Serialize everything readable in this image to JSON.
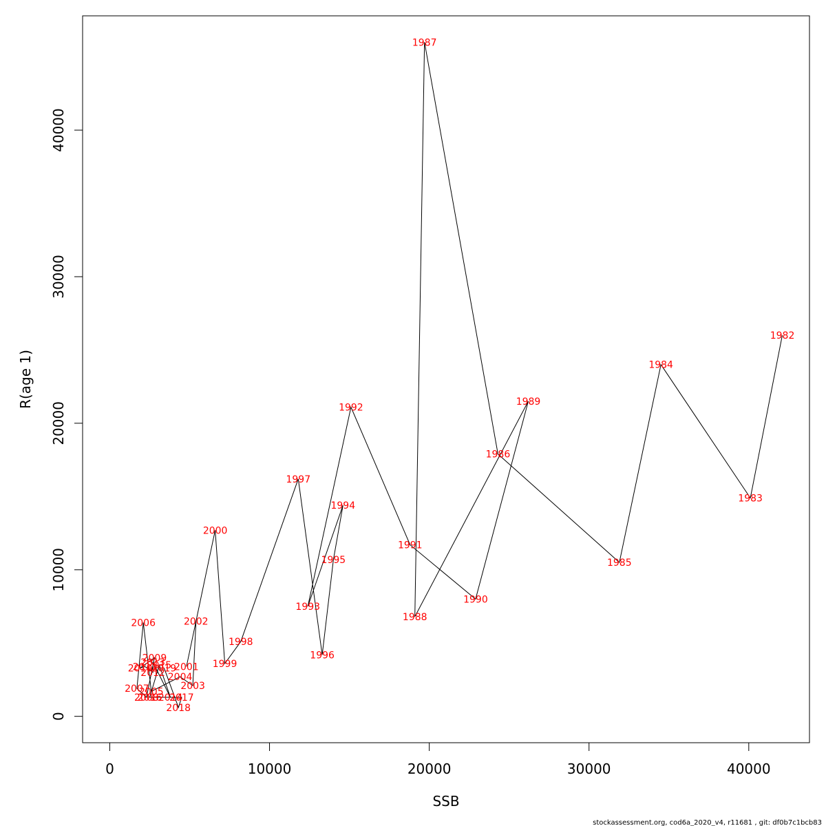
{
  "chart_data": {
    "type": "line",
    "xlabel": "SSB",
    "ylabel": "R(age 1)",
    "xlim": [
      -1700,
      43800
    ],
    "ylim": [
      -1800,
      47800
    ],
    "x_ticks": [
      0,
      10000,
      20000,
      30000,
      40000
    ],
    "y_ticks": [
      0,
      10000,
      20000,
      30000,
      40000
    ],
    "x_tick_labels": [
      "0",
      "10000",
      "20000",
      "30000",
      "40000"
    ],
    "y_tick_labels": [
      "0",
      "10000",
      "20000",
      "30000",
      "40000"
    ],
    "grid": false,
    "line_color": "#000000",
    "label_color": "#ff0000",
    "series": [
      {
        "points": [
          {
            "label": "1982",
            "x": 42100,
            "y": 26000
          },
          {
            "label": "1983",
            "x": 40100,
            "y": 14900
          },
          {
            "label": "1984",
            "x": 34500,
            "y": 24000
          },
          {
            "label": "1985",
            "x": 31900,
            "y": 10500
          },
          {
            "label": "1986",
            "x": 24300,
            "y": 17900
          },
          {
            "label": "1987",
            "x": 19700,
            "y": 46000
          },
          {
            "label": "1988",
            "x": 19100,
            "y": 6800
          },
          {
            "label": "1989",
            "x": 26200,
            "y": 21500
          },
          {
            "label": "1990",
            "x": 22900,
            "y": 8000
          },
          {
            "label": "1991",
            "x": 18800,
            "y": 11700
          },
          {
            "label": "1992",
            "x": 15100,
            "y": 21100
          },
          {
            "label": "1993",
            "x": 12400,
            "y": 7500
          },
          {
            "label": "1994",
            "x": 14600,
            "y": 14400
          },
          {
            "label": "1995",
            "x": 14000,
            "y": 10700
          },
          {
            "label": "1996",
            "x": 13300,
            "y": 4200
          },
          {
            "label": "1997",
            "x": 11800,
            "y": 16200
          },
          {
            "label": "1998",
            "x": 8200,
            "y": 5100
          },
          {
            "label": "1999",
            "x": 7200,
            "y": 3600
          },
          {
            "label": "2000",
            "x": 6600,
            "y": 12700
          },
          {
            "label": "2001",
            "x": 4800,
            "y": 3400
          },
          {
            "label": "2002",
            "x": 5400,
            "y": 6500
          },
          {
            "label": "2003",
            "x": 5200,
            "y": 2100
          },
          {
            "label": "2004",
            "x": 4400,
            "y": 2700
          },
          {
            "label": "2005",
            "x": 2600,
            "y": 1700
          },
          {
            "label": "2006",
            "x": 2100,
            "y": 6400
          },
          {
            "label": "2007",
            "x": 1700,
            "y": 1900
          },
          {
            "label": "2008",
            "x": 2300,
            "y": 1300
          },
          {
            "label": "2009",
            "x": 2800,
            "y": 4000
          },
          {
            "label": "2010",
            "x": 1900,
            "y": 3300
          },
          {
            "label": "2011",
            "x": 2200,
            "y": 3400
          },
          {
            "label": "2012",
            "x": 2700,
            "y": 3000
          },
          {
            "label": "2013",
            "x": 2700,
            "y": 3700
          },
          {
            "label": "2014",
            "x": 3800,
            "y": 1300
          },
          {
            "label": "2015",
            "x": 3100,
            "y": 3500
          },
          {
            "label": "2016",
            "x": 2500,
            "y": 1300
          },
          {
            "label": "2017",
            "x": 4500,
            "y": 1300
          },
          {
            "label": "2018",
            "x": 4300,
            "y": 600
          },
          {
            "label": "2019",
            "x": 3400,
            "y": 3300
          }
        ]
      }
    ]
  },
  "footer_text": "stockassessment.org, cod6a_2020_v4, r11681 , git: df0b7c1bcb83"
}
